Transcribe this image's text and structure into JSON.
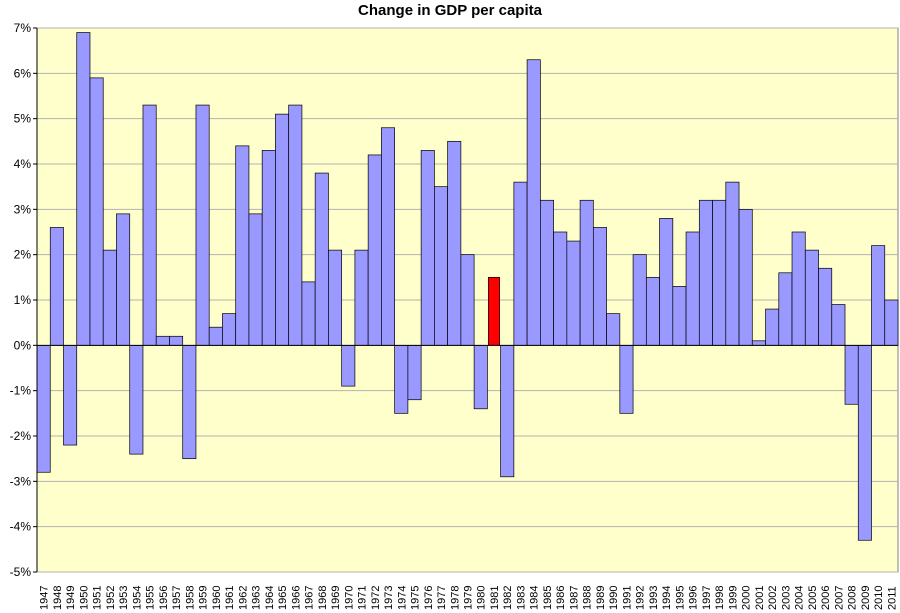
{
  "chart_data": {
    "type": "bar",
    "title": "Change in GDP per capita",
    "xlabel": "",
    "ylabel": "",
    "ylim": [
      -5,
      7
    ],
    "y_ticks": [
      "7%",
      "6%",
      "5%",
      "4%",
      "3%",
      "2%",
      "1%",
      "0%",
      "-1%",
      "-2%",
      "-3%",
      "-4%",
      "-5%"
    ],
    "grid": true,
    "legend": "none",
    "plot_background": "#ffffcc",
    "bar_color": "#9999ff",
    "highlight_color": "#ff0000",
    "highlight_category": "1981",
    "categories": [
      "1947",
      "1948",
      "1949",
      "1950",
      "1951",
      "1952",
      "1953",
      "1954",
      "1955",
      "1956",
      "1957",
      "1958",
      "1959",
      "1960",
      "1961",
      "1962",
      "1963",
      "1964",
      "1965",
      "1966",
      "1967",
      "1968",
      "1969",
      "1970",
      "1971",
      "1972",
      "1973",
      "1974",
      "1975",
      "1976",
      "1977",
      "1978",
      "1979",
      "1980",
      "1981",
      "1982",
      "1983",
      "1984",
      "1985",
      "1986",
      "1987",
      "1988",
      "1989",
      "1990",
      "1991",
      "1992",
      "1993",
      "1994",
      "1995",
      "1996",
      "1997",
      "1998",
      "1999",
      "2000",
      "2001",
      "2002",
      "2003",
      "2004",
      "2005",
      "2006",
      "2007",
      "2008",
      "2009",
      "2010",
      "2011"
    ],
    "values": [
      -2.8,
      2.6,
      -2.2,
      6.9,
      5.9,
      2.1,
      2.9,
      -2.4,
      5.3,
      0.2,
      0.2,
      -2.5,
      5.3,
      0.4,
      0.7,
      4.4,
      2.9,
      4.3,
      5.1,
      5.3,
      1.4,
      3.8,
      2.1,
      -0.9,
      2.1,
      4.2,
      4.8,
      -1.5,
      -1.2,
      4.3,
      3.5,
      4.5,
      2.0,
      -1.4,
      1.5,
      -2.9,
      3.6,
      6.3,
      3.2,
      2.5,
      2.3,
      3.2,
      2.6,
      0.7,
      -1.5,
      2.0,
      1.5,
      2.8,
      1.3,
      2.5,
      3.2,
      3.2,
      3.6,
      3.0,
      0.1,
      0.8,
      1.6,
      2.5,
      2.1,
      1.7,
      0.9,
      -1.3,
      -4.3,
      2.2,
      1.0
    ]
  }
}
